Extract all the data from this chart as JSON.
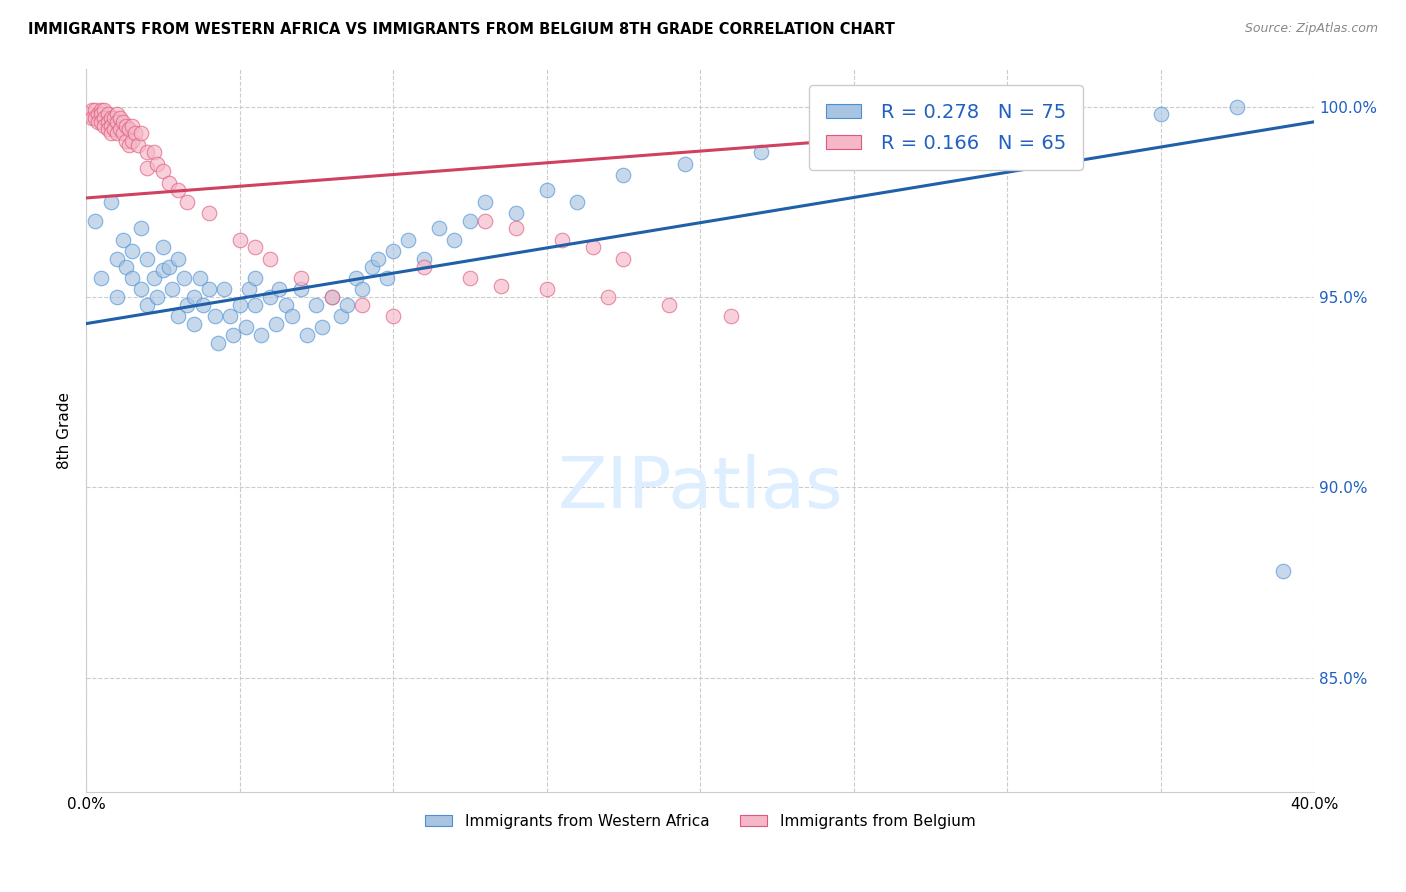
{
  "title": "IMMIGRANTS FROM WESTERN AFRICA VS IMMIGRANTS FROM BELGIUM 8TH GRADE CORRELATION CHART",
  "source": "Source: ZipAtlas.com",
  "ylabel": "8th Grade",
  "xlim": [
    0.0,
    0.4
  ],
  "ylim": [
    0.82,
    1.01
  ],
  "yticks": [
    0.85,
    0.9,
    0.95,
    1.0
  ],
  "ytick_labels": [
    "85.0%",
    "90.0%",
    "95.0%",
    "100.0%"
  ],
  "xticks": [
    0.0,
    0.05,
    0.1,
    0.15,
    0.2,
    0.25,
    0.3,
    0.35,
    0.4
  ],
  "blue_R": 0.278,
  "blue_N": 75,
  "pink_R": 0.166,
  "pink_N": 65,
  "blue_color": "#a8c4e0",
  "blue_edge_color": "#4a90d9",
  "pink_color": "#f4b8c8",
  "pink_edge_color": "#e05878",
  "blue_line_color": "#2060a8",
  "pink_line_color": "#d04060",
  "legend_text_color": "#2060c0",
  "watermark_color": "#ddeeff",
  "background_color": "#ffffff",
  "blue_scatter_x": [
    0.003,
    0.005,
    0.008,
    0.01,
    0.01,
    0.012,
    0.013,
    0.015,
    0.015,
    0.018,
    0.018,
    0.02,
    0.02,
    0.022,
    0.023,
    0.025,
    0.025,
    0.027,
    0.028,
    0.03,
    0.03,
    0.032,
    0.033,
    0.035,
    0.035,
    0.037,
    0.038,
    0.04,
    0.042,
    0.043,
    0.045,
    0.047,
    0.048,
    0.05,
    0.052,
    0.053,
    0.055,
    0.055,
    0.057,
    0.06,
    0.062,
    0.063,
    0.065,
    0.067,
    0.07,
    0.072,
    0.075,
    0.077,
    0.08,
    0.083,
    0.085,
    0.088,
    0.09,
    0.093,
    0.095,
    0.098,
    0.1,
    0.105,
    0.11,
    0.115,
    0.12,
    0.125,
    0.13,
    0.14,
    0.15,
    0.16,
    0.175,
    0.195,
    0.22,
    0.25,
    0.28,
    0.31,
    0.35,
    0.375,
    0.39
  ],
  "blue_scatter_y": [
    0.97,
    0.955,
    0.975,
    0.96,
    0.95,
    0.965,
    0.958,
    0.962,
    0.955,
    0.968,
    0.952,
    0.96,
    0.948,
    0.955,
    0.95,
    0.963,
    0.957,
    0.958,
    0.952,
    0.96,
    0.945,
    0.955,
    0.948,
    0.95,
    0.943,
    0.955,
    0.948,
    0.952,
    0.945,
    0.938,
    0.952,
    0.945,
    0.94,
    0.948,
    0.942,
    0.952,
    0.955,
    0.948,
    0.94,
    0.95,
    0.943,
    0.952,
    0.948,
    0.945,
    0.952,
    0.94,
    0.948,
    0.942,
    0.95,
    0.945,
    0.948,
    0.955,
    0.952,
    0.958,
    0.96,
    0.955,
    0.962,
    0.965,
    0.96,
    0.968,
    0.965,
    0.97,
    0.975,
    0.972,
    0.978,
    0.975,
    0.982,
    0.985,
    0.988,
    0.992,
    0.993,
    0.998,
    0.998,
    1.0,
    0.878
  ],
  "pink_scatter_x": [
    0.001,
    0.002,
    0.002,
    0.003,
    0.003,
    0.004,
    0.004,
    0.005,
    0.005,
    0.005,
    0.006,
    0.006,
    0.006,
    0.007,
    0.007,
    0.007,
    0.008,
    0.008,
    0.008,
    0.009,
    0.009,
    0.01,
    0.01,
    0.01,
    0.011,
    0.011,
    0.012,
    0.012,
    0.013,
    0.013,
    0.014,
    0.014,
    0.015,
    0.015,
    0.016,
    0.017,
    0.018,
    0.02,
    0.02,
    0.022,
    0.023,
    0.025,
    0.027,
    0.03,
    0.033,
    0.04,
    0.05,
    0.055,
    0.06,
    0.07,
    0.08,
    0.09,
    0.1,
    0.11,
    0.125,
    0.135,
    0.15,
    0.17,
    0.19,
    0.21,
    0.13,
    0.14,
    0.155,
    0.165,
    0.175
  ],
  "pink_scatter_y": [
    0.998,
    0.999,
    0.997,
    0.999,
    0.997,
    0.998,
    0.996,
    0.999,
    0.998,
    0.996,
    0.999,
    0.997,
    0.995,
    0.998,
    0.996,
    0.994,
    0.997,
    0.995,
    0.993,
    0.997,
    0.994,
    0.998,
    0.996,
    0.993,
    0.997,
    0.994,
    0.996,
    0.993,
    0.995,
    0.991,
    0.994,
    0.99,
    0.995,
    0.991,
    0.993,
    0.99,
    0.993,
    0.988,
    0.984,
    0.988,
    0.985,
    0.983,
    0.98,
    0.978,
    0.975,
    0.972,
    0.965,
    0.963,
    0.96,
    0.955,
    0.95,
    0.948,
    0.945,
    0.958,
    0.955,
    0.953,
    0.952,
    0.95,
    0.948,
    0.945,
    0.97,
    0.968,
    0.965,
    0.963,
    0.96
  ],
  "blue_trend_x": [
    0.0,
    0.4
  ],
  "blue_trend_y": [
    0.943,
    0.996
  ],
  "pink_trend_x": [
    0.0,
    0.26
  ],
  "pink_trend_y": [
    0.976,
    0.992
  ]
}
